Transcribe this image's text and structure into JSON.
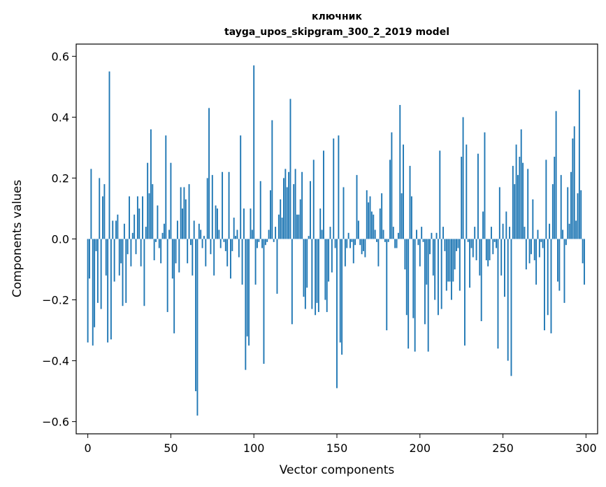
{
  "chart_data": {
    "type": "bar",
    "title": "ключник",
    "subtitle": "tayga_upos_skipgram_300_2_2019 model",
    "xlabel": "Vector components",
    "ylabel": "Components values",
    "xlim": [
      -7,
      307
    ],
    "ylim": [
      -0.64,
      0.64
    ],
    "x_ticks": [
      0,
      50,
      100,
      150,
      200,
      250,
      300
    ],
    "x_tick_labels": [
      "0",
      "50",
      "100",
      "150",
      "200",
      "250",
      "300"
    ],
    "y_ticks": [
      -0.6,
      -0.4,
      -0.2,
      0.0,
      0.2,
      0.4,
      0.6
    ],
    "y_tick_labels": [
      "−0.6",
      "−0.4",
      "−0.2",
      "0.0",
      "0.2",
      "0.4",
      "0.6"
    ],
    "bar_color": "#1f77b4",
    "grid": false,
    "legend": "none",
    "x": "0..299",
    "values": [
      -0.34,
      -0.13,
      0.23,
      -0.35,
      -0.29,
      -0.04,
      -0.21,
      0.2,
      -0.23,
      0.14,
      0.18,
      -0.12,
      -0.34,
      0.55,
      -0.33,
      0.06,
      -0.14,
      0.06,
      0.08,
      -0.12,
      -0.08,
      -0.22,
      0.05,
      -0.21,
      -0.05,
      0.14,
      -0.09,
      0.02,
      0.08,
      -0.05,
      0.14,
      0.1,
      -0.09,
      0.14,
      -0.22,
      0.04,
      0.25,
      0.15,
      0.36,
      0.18,
      -0.07,
      -0.01,
      0.11,
      -0.03,
      -0.08,
      0.02,
      0.05,
      0.34,
      -0.24,
      0.03,
      0.25,
      -0.13,
      -0.31,
      -0.08,
      0.06,
      -0.11,
      0.17,
      0.1,
      0.17,
      0.13,
      -0.08,
      0.18,
      -0.02,
      -0.12,
      0.06,
      -0.5,
      -0.58,
      0.05,
      0.03,
      -0.03,
      0.01,
      -0.09,
      0.2,
      0.43,
      -0.05,
      0.21,
      -0.12,
      0.11,
      0.1,
      0.03,
      -0.03,
      0.22,
      -0.01,
      -0.04,
      -0.09,
      0.22,
      -0.13,
      -0.04,
      0.07,
      0.01,
      0.03,
      -0.06,
      0.34,
      -0.15,
      0.1,
      -0.43,
      -0.32,
      -0.35,
      0.1,
      0.03,
      0.57,
      -0.15,
      -0.03,
      -0.01,
      0.19,
      -0.03,
      -0.41,
      -0.02,
      -0.01,
      0.03,
      0.16,
      0.39,
      -0.01,
      0.04,
      -0.18,
      0.08,
      0.13,
      0.07,
      0.2,
      0.23,
      0.17,
      0.22,
      0.46,
      -0.28,
      0.18,
      0.23,
      0.08,
      0.08,
      0.13,
      0.22,
      -0.19,
      -0.23,
      -0.16,
      0.01,
      0.19,
      -0.23,
      0.26,
      -0.25,
      -0.21,
      -0.24,
      0.1,
      0.03,
      0.29,
      -0.2,
      -0.24,
      -0.14,
      0.04,
      -0.11,
      0.33,
      -0.03,
      -0.49,
      0.34,
      -0.34,
      -0.38,
      0.17,
      -0.09,
      -0.03,
      0.02,
      -0.03,
      -0.01,
      -0.08,
      -0.02,
      0.21,
      0.06,
      -0.02,
      -0.05,
      -0.04,
      -0.06,
      0.16,
      0.12,
      0.14,
      0.09,
      0.08,
      0.03,
      -0.01,
      -0.09,
      0.1,
      0.15,
      0.03,
      -0.01,
      -0.3,
      -0.01,
      0.26,
      0.35,
      0.04,
      -0.03,
      -0.03,
      0.02,
      0.44,
      0.15,
      0.31,
      -0.1,
      -0.25,
      -0.36,
      0.24,
      0.14,
      -0.26,
      -0.37,
      0.03,
      -0.02,
      -0.09,
      0.04,
      -0.01,
      -0.28,
      -0.15,
      -0.37,
      -0.05,
      0.02,
      -0.12,
      -0.2,
      0.02,
      -0.25,
      0.29,
      -0.23,
      0.04,
      -0.04,
      -0.17,
      -0.14,
      -0.14,
      -0.2,
      -0.14,
      -0.1,
      -0.04,
      -0.03,
      -0.17,
      0.27,
      0.4,
      -0.35,
      0.31,
      -0.01,
      -0.16,
      -0.03,
      -0.06,
      0.04,
      -0.07,
      0.28,
      -0.12,
      -0.27,
      0.09,
      0.35,
      -0.07,
      -0.09,
      -0.07,
      0.04,
      -0.05,
      -0.01,
      -0.03,
      -0.36,
      0.17,
      -0.12,
      0.05,
      -0.19,
      0.09,
      -0.4,
      0.04,
      -0.45,
      0.24,
      0.18,
      0.31,
      0.21,
      0.27,
      0.36,
      0.25,
      0.04,
      -0.1,
      0.23,
      -0.08,
      -0.05,
      0.13,
      -0.07,
      -0.15,
      0.03,
      -0.06,
      -0.01,
      -0.03,
      -0.3,
      0.26,
      -0.25,
      0.05,
      -0.31,
      0.18,
      0.27,
      0.42,
      -0.14,
      -0.17,
      0.21,
      0.03,
      -0.21,
      -0.02,
      0.17,
      0.05,
      0.22,
      0.33,
      0.37,
      0.06,
      0.15,
      0.49,
      0.16,
      -0.08,
      -0.15
    ]
  }
}
